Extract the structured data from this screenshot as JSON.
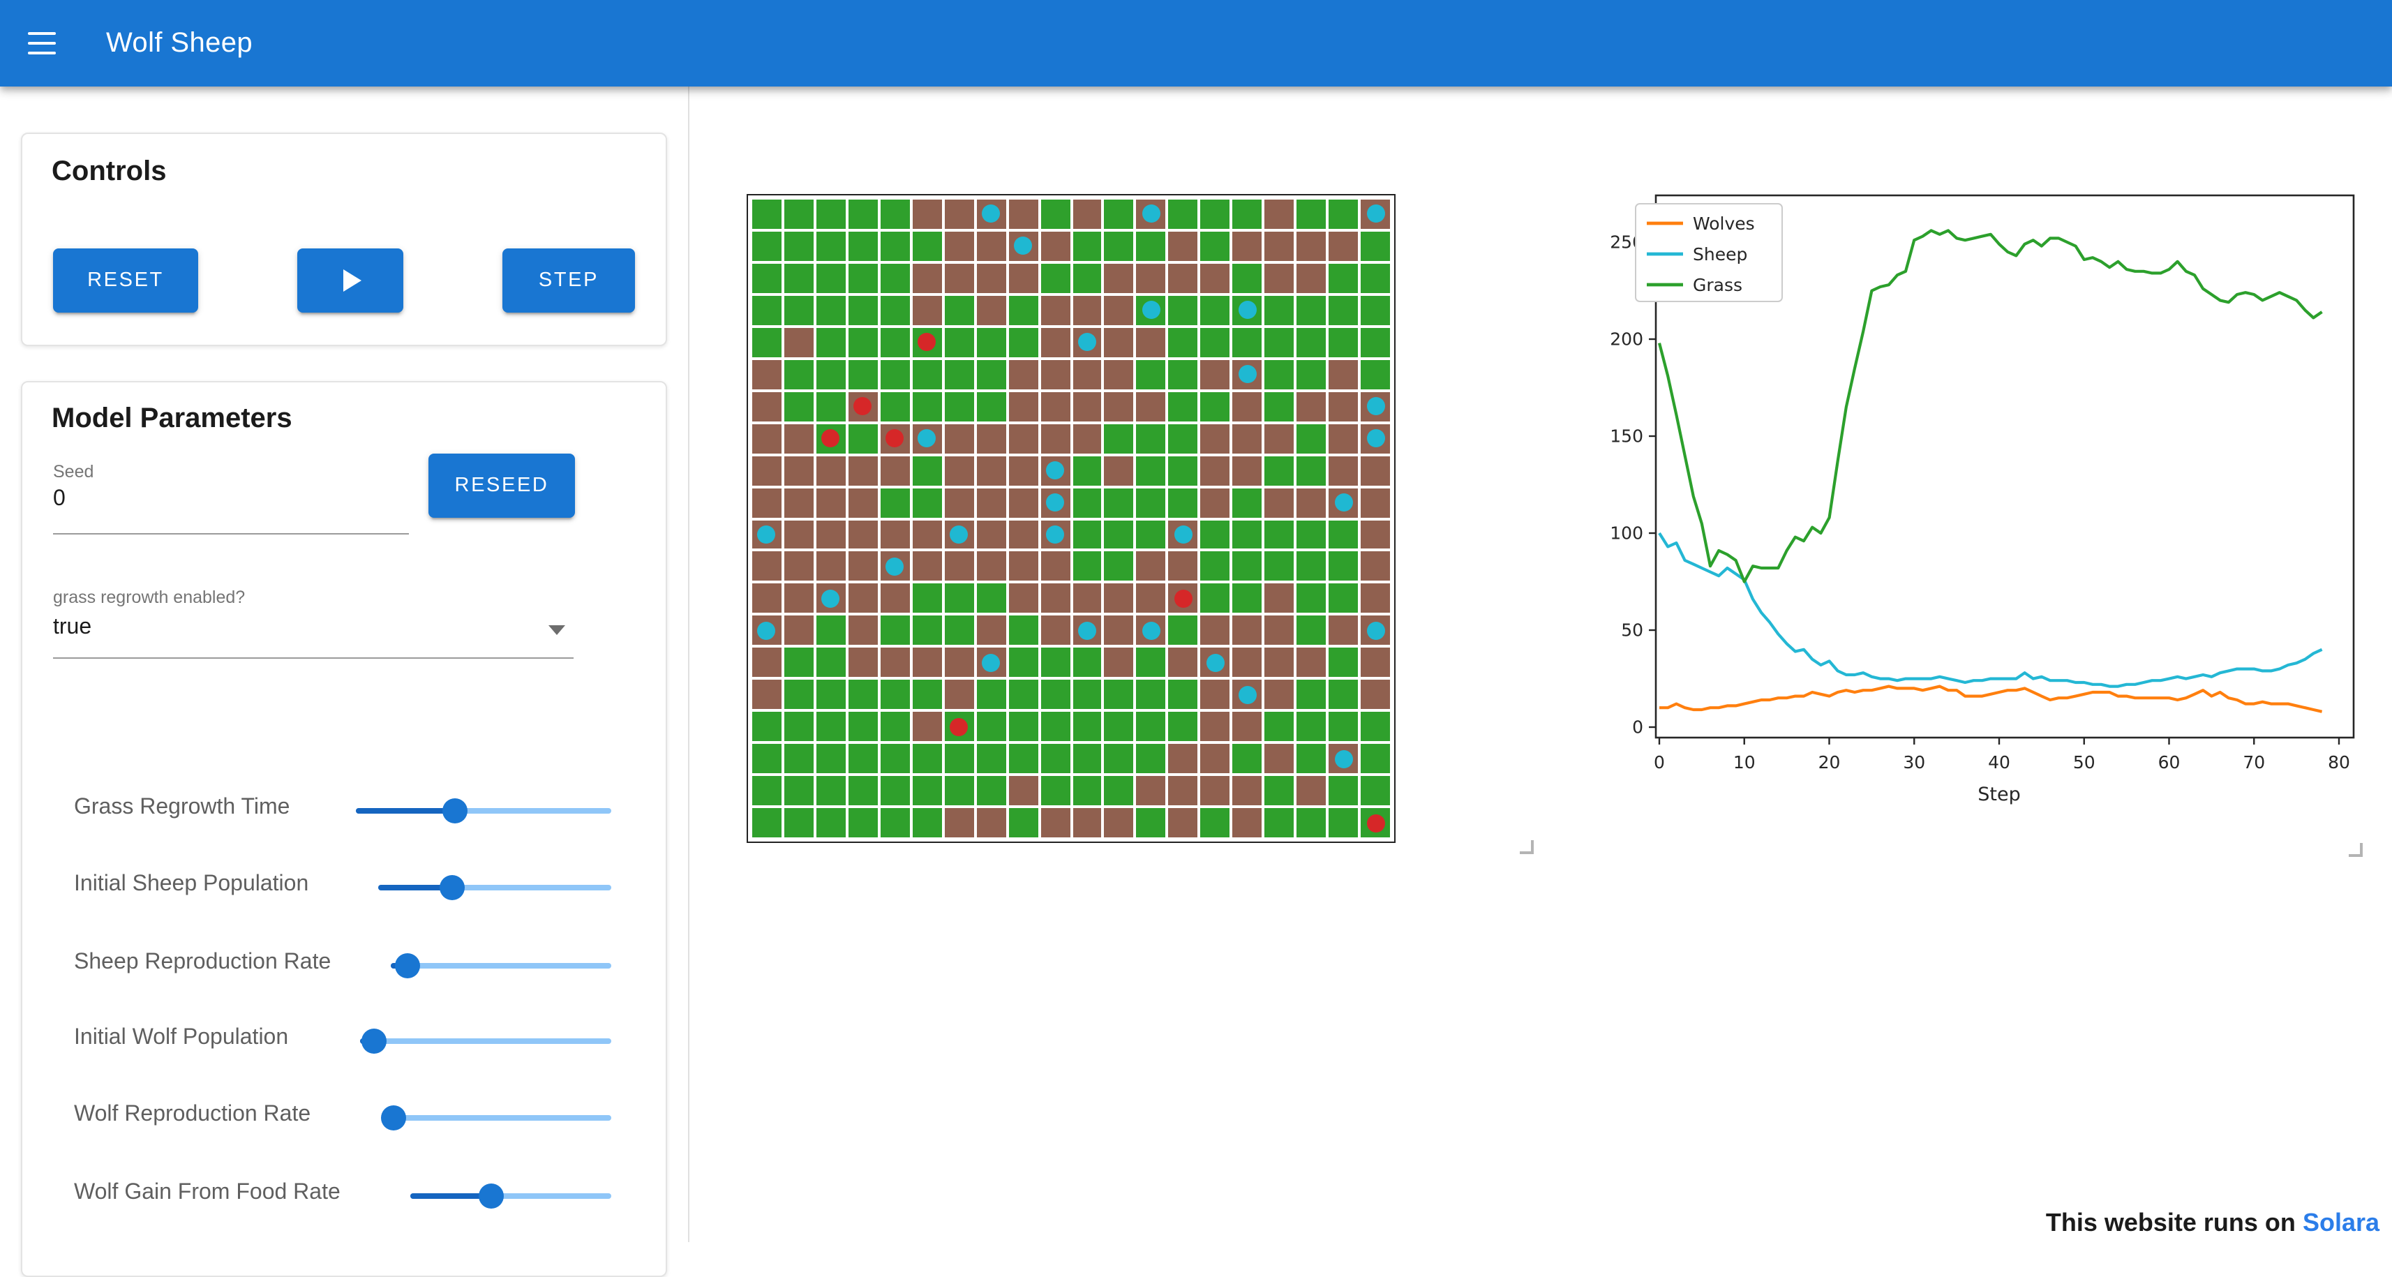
{
  "app_bar": {
    "title": "Wolf Sheep"
  },
  "controls": {
    "title": "Controls",
    "reset_label": "RESET",
    "play_icon": "play-triangle",
    "step_label": "STEP"
  },
  "model_parameters": {
    "title": "Model Parameters",
    "seed": {
      "label": "Seed",
      "value": "0",
      "reseed_label": "RESEED"
    },
    "grass_regrowth_enabled": {
      "label": "grass regrowth enabled?",
      "value": "true"
    },
    "sliders": [
      {
        "label": "Grass Regrowth Time",
        "fill": 0.39
      },
      {
        "label": "Initial Sheep Population",
        "fill": 0.32
      },
      {
        "label": "Sheep Reproduction Rate",
        "fill": 0.076
      },
      {
        "label": "Initial Wolf Population",
        "fill": 0.056
      },
      {
        "label": "Wolf Reproduction Rate",
        "fill": 0.049
      },
      {
        "label": "Wolf Gain From Food Rate",
        "fill": 0.4
      }
    ]
  },
  "grid": {
    "rows": 20,
    "cols": 20,
    "colors": {
      "grass": "#2fa02c",
      "soil": "#90604f",
      "sheep": "#1fb8d2",
      "wolf": "#d62728"
    },
    "cells": [
      "GGGGGBBBBGBGBGGGBGGB",
      "GGGGGGBBBBGGGBGBBBBG",
      "GGGGGBBBBGGBBBBGBBGG",
      "GGGGGBGBGBBBGGGGGGGG",
      "GBGGGGGGGBBBBGGGGGGG",
      "BGGGGGGGBBBBGGBBGGBG",
      "BGGBGGGGBBBBBGGBGBBB",
      "BBGGBBBBBBBGGGBBBGBB",
      "BBBBBGBBBBGBGGBBGGBB",
      "BBBBGGBBBBGGGGBGBBBB",
      "BBBBBBBBBBGGGBGGGGGB",
      "BBBBBBBBBBGGBBGGGGGB",
      "BBBBBGGGBBBBBBGGBGGB",
      "BBGBGGGBGBBBBGBBBGBB",
      "BGGBBBBBGGGBGBBBBBGB",
      "BGGGGGBGGGGGGGBBBGGB",
      "GGGGGBGGGGGGGGBBGGGG",
      "GGGGGGGGGGGGGBBGBGBG",
      "GGGGGGGGBGGGBBBBGBGG",
      "GGGGGGBBGBBBGBGBGGGG"
    ],
    "agents": [
      {
        "r": 0,
        "c": 7,
        "type": "sheep"
      },
      {
        "r": 0,
        "c": 12,
        "type": "sheep"
      },
      {
        "r": 0,
        "c": 19,
        "type": "sheep"
      },
      {
        "r": 1,
        "c": 8,
        "type": "sheep"
      },
      {
        "r": 3,
        "c": 12,
        "type": "sheep"
      },
      {
        "r": 3,
        "c": 15,
        "type": "sheep"
      },
      {
        "r": 4,
        "c": 10,
        "type": "sheep"
      },
      {
        "r": 5,
        "c": 15,
        "type": "sheep"
      },
      {
        "r": 6,
        "c": 19,
        "type": "sheep"
      },
      {
        "r": 7,
        "c": 5,
        "type": "sheep"
      },
      {
        "r": 7,
        "c": 19,
        "type": "sheep"
      },
      {
        "r": 8,
        "c": 9,
        "type": "sheep"
      },
      {
        "r": 9,
        "c": 9,
        "type": "sheep"
      },
      {
        "r": 9,
        "c": 18,
        "type": "sheep"
      },
      {
        "r": 10,
        "c": 0,
        "type": "sheep"
      },
      {
        "r": 10,
        "c": 6,
        "type": "sheep"
      },
      {
        "r": 10,
        "c": 9,
        "type": "sheep"
      },
      {
        "r": 10,
        "c": 13,
        "type": "sheep"
      },
      {
        "r": 11,
        "c": 4,
        "type": "sheep"
      },
      {
        "r": 12,
        "c": 2,
        "type": "sheep"
      },
      {
        "r": 13,
        "c": 0,
        "type": "sheep"
      },
      {
        "r": 13,
        "c": 10,
        "type": "sheep"
      },
      {
        "r": 13,
        "c": 12,
        "type": "sheep"
      },
      {
        "r": 13,
        "c": 19,
        "type": "sheep"
      },
      {
        "r": 14,
        "c": 7,
        "type": "sheep"
      },
      {
        "r": 14,
        "c": 14,
        "type": "sheep"
      },
      {
        "r": 15,
        "c": 15,
        "type": "sheep"
      },
      {
        "r": 17,
        "c": 18,
        "type": "sheep"
      },
      {
        "r": 4,
        "c": 5,
        "type": "wolf"
      },
      {
        "r": 6,
        "c": 3,
        "type": "wolf"
      },
      {
        "r": 7,
        "c": 2,
        "type": "wolf"
      },
      {
        "r": 7,
        "c": 4,
        "type": "wolf"
      },
      {
        "r": 12,
        "c": 13,
        "type": "wolf"
      },
      {
        "r": 16,
        "c": 6,
        "type": "wolf"
      },
      {
        "r": 19,
        "c": 19,
        "type": "wolf"
      }
    ]
  },
  "chart_data": {
    "type": "line",
    "xlabel": "Step",
    "ylabel": "",
    "xlim": [
      0,
      80
    ],
    "ylim": [
      0,
      260
    ],
    "xticks": [
      0,
      10,
      20,
      30,
      40,
      50,
      60,
      70,
      80
    ],
    "yticks": [
      0,
      50,
      100,
      150,
      200,
      250
    ],
    "grid": false,
    "legend_position": "upper-left",
    "colors": {
      "Wolves": "#ff7f0e",
      "Sheep": "#24b7d4",
      "Grass": "#2ca02c"
    },
    "x_start": 0,
    "series": [
      {
        "name": "Wolves",
        "values": [
          10,
          10,
          12,
          10,
          9,
          9,
          10,
          10,
          11,
          11,
          12,
          13,
          14,
          14,
          15,
          15,
          16,
          16,
          18,
          17,
          16,
          18,
          19,
          18,
          19,
          19,
          20,
          21,
          20,
          20,
          20,
          19,
          20,
          21,
          19,
          19,
          16,
          16,
          16,
          17,
          18,
          19,
          19,
          20,
          18,
          16,
          14,
          15,
          15,
          16,
          17,
          18,
          18,
          18,
          16,
          16,
          15,
          15,
          15,
          15,
          15,
          14,
          15,
          17,
          19,
          16,
          18,
          15,
          14,
          12,
          12,
          13,
          12,
          12,
          12,
          11,
          10,
          9,
          8
        ]
      },
      {
        "name": "Sheep",
        "values": [
          100,
          93,
          95,
          86,
          84,
          82,
          80,
          78,
          82,
          79,
          76,
          66,
          59,
          54,
          48,
          43,
          39,
          40,
          35,
          32,
          34,
          29,
          27,
          27,
          28,
          26,
          25,
          25,
          24,
          25,
          25,
          25,
          25,
          26,
          25,
          24,
          23,
          24,
          24,
          25,
          25,
          25,
          25,
          28,
          25,
          26,
          24,
          24,
          24,
          23,
          23,
          22,
          22,
          21,
          21,
          22,
          22,
          23,
          24,
          24,
          25,
          26,
          25,
          26,
          27,
          26,
          28,
          29,
          30,
          30,
          30,
          29,
          29,
          30,
          32,
          33,
          35,
          38,
          40
        ]
      },
      {
        "name": "Grass",
        "values": [
          198,
          181,
          161,
          140,
          119,
          105,
          83,
          91,
          89,
          86,
          75,
          83,
          82,
          82,
          82,
          91,
          98,
          96,
          103,
          100,
          108,
          137,
          165,
          185,
          204,
          225,
          227,
          228,
          233,
          235,
          251,
          253,
          256,
          254,
          256,
          252,
          251,
          252,
          253,
          254,
          249,
          245,
          243,
          249,
          251,
          248,
          252,
          252,
          250,
          248,
          241,
          242,
          240,
          237,
          240,
          236,
          235,
          235,
          234,
          234,
          236,
          240,
          235,
          233,
          226,
          223,
          220,
          219,
          223,
          224,
          223,
          220,
          222,
          224,
          222,
          220,
          215,
          211,
          214
        ]
      }
    ]
  },
  "footer": {
    "text": "This website runs on",
    "link_label": "Solara"
  }
}
